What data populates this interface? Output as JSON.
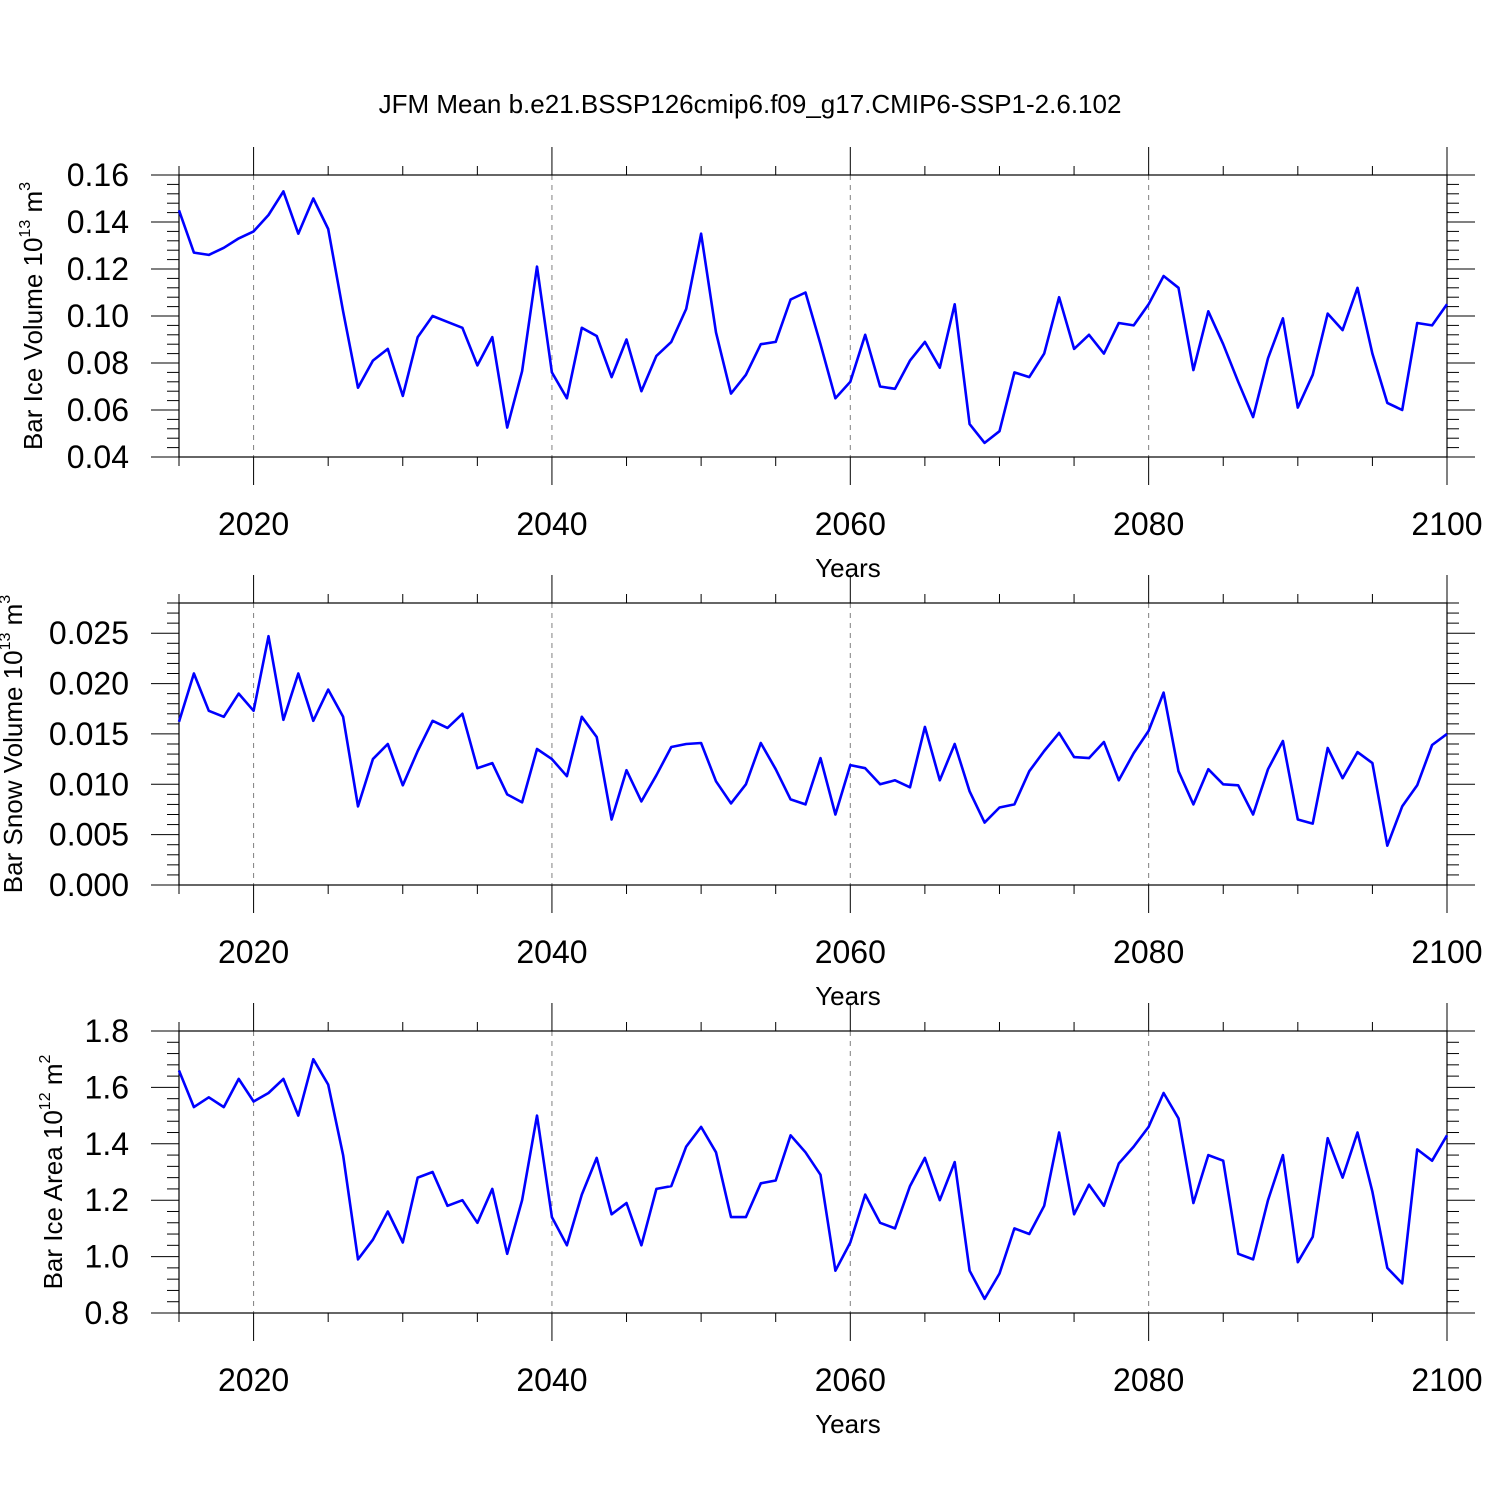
{
  "title": "JFM Mean b.e21.BSSP126cmip6.f09_g17.CMIP6-SSP1-2.6.102",
  "colors": {
    "series": "#0000ff",
    "axis": "#000000",
    "grid": "#808080"
  },
  "chart_data": [
    {
      "type": "line",
      "title": "",
      "xlabel": "Years",
      "ylabel": {
        "prefix": "Bar Ice Volume 10",
        "exponent": "13",
        "unit": " m",
        "unit_exponent": "3"
      },
      "xlim": [
        2015,
        2100
      ],
      "ylim": [
        0.04,
        0.16
      ],
      "xticks": [
        2020,
        2040,
        2060,
        2080,
        2100
      ],
      "xtick_labels": [
        "2020",
        "2040",
        "2060",
        "2080",
        "2100"
      ],
      "yticks": [
        0.04,
        0.06,
        0.08,
        0.1,
        0.12,
        0.14,
        0.16
      ],
      "ytick_labels": [
        "0.04",
        "0.06",
        "0.08",
        "0.10",
        "0.12",
        "0.14",
        "0.16"
      ],
      "grid_x": true,
      "x": [
        2015,
        2016,
        2017,
        2018,
        2019,
        2020,
        2021,
        2022,
        2023,
        2024,
        2025,
        2026,
        2027,
        2028,
        2029,
        2030,
        2031,
        2032,
        2033,
        2034,
        2035,
        2036,
        2037,
        2038,
        2039,
        2040,
        2041,
        2042,
        2043,
        2044,
        2045,
        2046,
        2047,
        2048,
        2049,
        2050,
        2051,
        2052,
        2053,
        2054,
        2055,
        2056,
        2057,
        2058,
        2059,
        2060,
        2061,
        2062,
        2063,
        2064,
        2065,
        2066,
        2067,
        2068,
        2069,
        2070,
        2071,
        2072,
        2073,
        2074,
        2075,
        2076,
        2077,
        2078,
        2079,
        2080,
        2081,
        2082,
        2083,
        2084,
        2085,
        2086,
        2087,
        2088,
        2089,
        2090,
        2091,
        2092,
        2093,
        2094,
        2095,
        2096,
        2097,
        2098,
        2099,
        2100
      ],
      "series": [
        {
          "values": [
            0.145,
            0.127,
            0.126,
            0.129,
            0.133,
            0.136,
            0.143,
            0.153,
            0.135,
            0.15,
            0.137,
            0.102,
            0.0695,
            0.081,
            0.086,
            0.066,
            0.091,
            0.1,
            0.0975,
            0.095,
            0.079,
            0.091,
            0.0525,
            0.0765,
            0.121,
            0.076,
            0.065,
            0.095,
            0.0915,
            0.074,
            0.09,
            0.068,
            0.083,
            0.089,
            0.103,
            0.135,
            0.093,
            0.067,
            0.075,
            0.088,
            0.089,
            0.107,
            0.11,
            0.088,
            0.065,
            0.072,
            0.092,
            0.07,
            0.069,
            0.081,
            0.089,
            0.078,
            0.105,
            0.054,
            0.046,
            0.051,
            0.076,
            0.074,
            0.084,
            0.108,
            0.086,
            0.092,
            0.084,
            0.097,
            0.096,
            0.105,
            0.117,
            0.112,
            0.077,
            0.102,
            0.088,
            0.072,
            0.057,
            0.082,
            0.099,
            0.061,
            0.075,
            0.101,
            0.094,
            0.112,
            0.084,
            0.063,
            0.06,
            0.097,
            0.096,
            0.105
          ]
        }
      ]
    },
    {
      "type": "line",
      "title": "",
      "xlabel": "Years",
      "ylabel": {
        "prefix": "Bar Snow Volume 10",
        "exponent": "13",
        "unit": " m",
        "unit_exponent": "3"
      },
      "xlim": [
        2015,
        2100
      ],
      "ylim": [
        0.0,
        0.028
      ],
      "xticks": [
        2020,
        2040,
        2060,
        2080,
        2100
      ],
      "xtick_labels": [
        "2020",
        "2040",
        "2060",
        "2080",
        "2100"
      ],
      "yticks": [
        0.0,
        0.005,
        0.01,
        0.015,
        0.02,
        0.025
      ],
      "ytick_labels": [
        "0.000",
        "0.005",
        "0.010",
        "0.015",
        "0.020",
        "0.025"
      ],
      "grid_x": true,
      "x": [
        2015,
        2016,
        2017,
        2018,
        2019,
        2020,
        2021,
        2022,
        2023,
        2024,
        2025,
        2026,
        2027,
        2028,
        2029,
        2030,
        2031,
        2032,
        2033,
        2034,
        2035,
        2036,
        2037,
        2038,
        2039,
        2040,
        2041,
        2042,
        2043,
        2044,
        2045,
        2046,
        2047,
        2048,
        2049,
        2050,
        2051,
        2052,
        2053,
        2054,
        2055,
        2056,
        2057,
        2058,
        2059,
        2060,
        2061,
        2062,
        2063,
        2064,
        2065,
        2066,
        2067,
        2068,
        2069,
        2070,
        2071,
        2072,
        2073,
        2074,
        2075,
        2076,
        2077,
        2078,
        2079,
        2080,
        2081,
        2082,
        2083,
        2084,
        2085,
        2086,
        2087,
        2088,
        2089,
        2090,
        2091,
        2092,
        2093,
        2094,
        2095,
        2096,
        2097,
        2098,
        2099,
        2100
      ],
      "series": [
        {
          "values": [
            0.0162,
            0.021,
            0.0173,
            0.0167,
            0.019,
            0.0173,
            0.0247,
            0.0164,
            0.021,
            0.0163,
            0.0194,
            0.0167,
            0.0078,
            0.0125,
            0.014,
            0.0099,
            0.0133,
            0.0163,
            0.0156,
            0.017,
            0.0116,
            0.0121,
            0.009,
            0.0082,
            0.0135,
            0.0125,
            0.0108,
            0.0167,
            0.0147,
            0.0065,
            0.0114,
            0.0083,
            0.0109,
            0.0137,
            0.014,
            0.0141,
            0.0103,
            0.0081,
            0.01,
            0.0141,
            0.0115,
            0.0085,
            0.008,
            0.0126,
            0.007,
            0.0119,
            0.0116,
            0.01,
            0.0104,
            0.0097,
            0.0157,
            0.0104,
            0.014,
            0.0093,
            0.0062,
            0.0077,
            0.008,
            0.0113,
            0.0133,
            0.0151,
            0.0127,
            0.0126,
            0.0142,
            0.0104,
            0.0131,
            0.0153,
            0.0191,
            0.0113,
            0.008,
            0.0115,
            0.01,
            0.0099,
            0.007,
            0.0115,
            0.0143,
            0.0065,
            0.0061,
            0.0136,
            0.0106,
            0.0132,
            0.0121,
            0.0039,
            0.0078,
            0.0099,
            0.0139,
            0.015
          ]
        }
      ]
    },
    {
      "type": "line",
      "title": "",
      "xlabel": "Years",
      "ylabel": {
        "prefix": "Bar Ice Area 10",
        "exponent": "12",
        "unit": " m",
        "unit_exponent": "2"
      },
      "xlim": [
        2015,
        2100
      ],
      "ylim": [
        0.8,
        1.8
      ],
      "xticks": [
        2020,
        2040,
        2060,
        2080,
        2100
      ],
      "xtick_labels": [
        "2020",
        "2040",
        "2060",
        "2080",
        "2100"
      ],
      "yticks": [
        0.8,
        1.0,
        1.2,
        1.4,
        1.6,
        1.8
      ],
      "ytick_labels": [
        "0.8",
        "1.0",
        "1.2",
        "1.4",
        "1.6",
        "1.8"
      ],
      "grid_x": true,
      "x": [
        2015,
        2016,
        2017,
        2018,
        2019,
        2020,
        2021,
        2022,
        2023,
        2024,
        2025,
        2026,
        2027,
        2028,
        2029,
        2030,
        2031,
        2032,
        2033,
        2034,
        2035,
        2036,
        2037,
        2038,
        2039,
        2040,
        2041,
        2042,
        2043,
        2044,
        2045,
        2046,
        2047,
        2048,
        2049,
        2050,
        2051,
        2052,
        2053,
        2054,
        2055,
        2056,
        2057,
        2058,
        2059,
        2060,
        2061,
        2062,
        2063,
        2064,
        2065,
        2066,
        2067,
        2068,
        2069,
        2070,
        2071,
        2072,
        2073,
        2074,
        2075,
        2076,
        2077,
        2078,
        2079,
        2080,
        2081,
        2082,
        2083,
        2084,
        2085,
        2086,
        2087,
        2088,
        2089,
        2090,
        2091,
        2092,
        2093,
        2094,
        2095,
        2096,
        2097,
        2098,
        2099,
        2100
      ],
      "series": [
        {
          "values": [
            1.66,
            1.53,
            1.565,
            1.53,
            1.63,
            1.55,
            1.58,
            1.63,
            1.5,
            1.7,
            1.61,
            1.36,
            0.99,
            1.06,
            1.16,
            1.05,
            1.28,
            1.3,
            1.18,
            1.2,
            1.12,
            1.24,
            1.01,
            1.2,
            1.5,
            1.14,
            1.04,
            1.22,
            1.35,
            1.15,
            1.19,
            1.04,
            1.24,
            1.25,
            1.39,
            1.46,
            1.37,
            1.14,
            1.14,
            1.26,
            1.27,
            1.43,
            1.37,
            1.29,
            0.95,
            1.05,
            1.22,
            1.12,
            1.1,
            1.25,
            1.35,
            1.2,
            1.335,
            0.95,
            0.85,
            0.94,
            1.1,
            1.08,
            1.18,
            1.44,
            1.15,
            1.255,
            1.18,
            1.33,
            1.39,
            1.46,
            1.58,
            1.49,
            1.19,
            1.36,
            1.34,
            1.01,
            0.99,
            1.2,
            1.36,
            0.98,
            1.07,
            1.42,
            1.28,
            1.44,
            1.23,
            0.96,
            0.905,
            1.38,
            1.34,
            1.43
          ]
        }
      ]
    }
  ]
}
